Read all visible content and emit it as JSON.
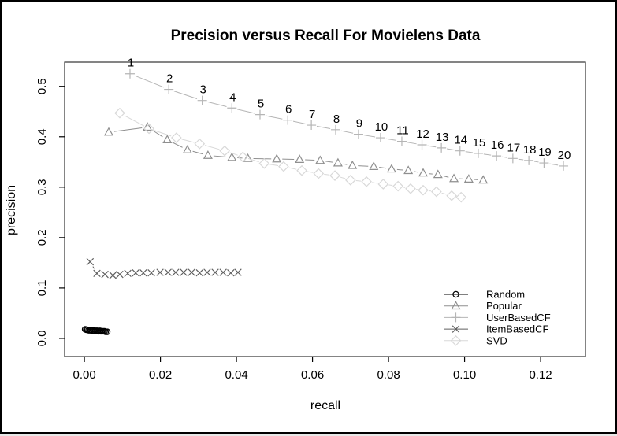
{
  "chart_data": {
    "type": "line",
    "title": "Precision versus Recall For Movielens Data",
    "xlabel": "recall",
    "ylabel": "precision",
    "grid": false,
    "legend_position": "bottom-right",
    "xlim": [
      -0.0052,
      0.1318
    ],
    "ylim": [
      -0.036,
      0.548
    ],
    "x_ticks": [
      {
        "value": 0.0,
        "label": "0.00"
      },
      {
        "value": 0.02,
        "label": "0.02"
      },
      {
        "value": 0.04,
        "label": "0.04"
      },
      {
        "value": 0.06,
        "label": "0.06"
      },
      {
        "value": 0.08,
        "label": "0.08"
      },
      {
        "value": 0.1,
        "label": "0.10"
      },
      {
        "value": 0.12,
        "label": "0.12"
      }
    ],
    "y_ticks": [
      {
        "value": 0.0,
        "label": "0.0"
      },
      {
        "value": 0.1,
        "label": "0.1"
      },
      {
        "value": 0.2,
        "label": "0.2"
      },
      {
        "value": 0.3,
        "label": "0.3"
      },
      {
        "value": 0.4,
        "label": "0.4"
      },
      {
        "value": 0.5,
        "label": "0.5"
      }
    ],
    "series": [
      {
        "name": "Random",
        "marker": "circle",
        "color": "#000000",
        "points": [
          [
            0.0002,
            0.018
          ],
          [
            0.0005,
            0.017
          ],
          [
            0.0008,
            0.017
          ],
          [
            0.0011,
            0.016
          ],
          [
            0.0014,
            0.016
          ],
          [
            0.0017,
            0.016
          ],
          [
            0.002,
            0.015
          ],
          [
            0.0023,
            0.016
          ],
          [
            0.0026,
            0.015
          ],
          [
            0.0029,
            0.015
          ],
          [
            0.0032,
            0.015
          ],
          [
            0.0035,
            0.015
          ],
          [
            0.0038,
            0.014
          ],
          [
            0.0041,
            0.015
          ],
          [
            0.0044,
            0.014
          ],
          [
            0.0047,
            0.014
          ],
          [
            0.005,
            0.014
          ],
          [
            0.0053,
            0.014
          ],
          [
            0.0056,
            0.013
          ],
          [
            0.006,
            0.013
          ]
        ]
      },
      {
        "name": "Popular",
        "marker": "triangle",
        "color": "#8f8f8f",
        "points": [
          [
            0.0064,
            0.409
          ],
          [
            0.0166,
            0.419
          ],
          [
            0.0218,
            0.394
          ],
          [
            0.0271,
            0.374
          ],
          [
            0.0325,
            0.363
          ],
          [
            0.0388,
            0.359
          ],
          [
            0.043,
            0.357
          ],
          [
            0.0506,
            0.356
          ],
          [
            0.0566,
            0.355
          ],
          [
            0.062,
            0.353
          ],
          [
            0.0667,
            0.348
          ],
          [
            0.0705,
            0.343
          ],
          [
            0.0761,
            0.341
          ],
          [
            0.0808,
            0.336
          ],
          [
            0.0852,
            0.333
          ],
          [
            0.0891,
            0.328
          ],
          [
            0.093,
            0.325
          ],
          [
            0.0972,
            0.317
          ],
          [
            0.1011,
            0.316
          ],
          [
            0.1049,
            0.314
          ]
        ]
      },
      {
        "name": "UserBasedCF",
        "marker": "plus",
        "color": "#b5b5b5",
        "point_labels": [
          "1",
          "2",
          "3",
          "4",
          "5",
          "6",
          "7",
          "8",
          "9",
          "10",
          "11",
          "12",
          "13",
          "14",
          "15",
          "16",
          "17",
          "18",
          "19",
          "20"
        ],
        "points": [
          [
            0.012,
            0.525
          ],
          [
            0.0222,
            0.494
          ],
          [
            0.031,
            0.472
          ],
          [
            0.0388,
            0.457
          ],
          [
            0.0462,
            0.444
          ],
          [
            0.0535,
            0.433
          ],
          [
            0.0597,
            0.423
          ],
          [
            0.0661,
            0.414
          ],
          [
            0.0721,
            0.405
          ],
          [
            0.0779,
            0.398
          ],
          [
            0.0835,
            0.391
          ],
          [
            0.0888,
            0.384
          ],
          [
            0.0939,
            0.378
          ],
          [
            0.0988,
            0.372
          ],
          [
            0.1036,
            0.367
          ],
          [
            0.1084,
            0.362
          ],
          [
            0.1127,
            0.357
          ],
          [
            0.1169,
            0.353
          ],
          [
            0.1209,
            0.348
          ],
          [
            0.126,
            0.342
          ]
        ]
      },
      {
        "name": "ItemBasedCF",
        "marker": "x",
        "color": "#5f5f5f",
        "points": [
          [
            0.0015,
            0.152
          ],
          [
            0.0033,
            0.129
          ],
          [
            0.0054,
            0.127
          ],
          [
            0.0075,
            0.125
          ],
          [
            0.0093,
            0.127
          ],
          [
            0.0114,
            0.129
          ],
          [
            0.0135,
            0.13
          ],
          [
            0.0155,
            0.13
          ],
          [
            0.0176,
            0.13
          ],
          [
            0.0199,
            0.131
          ],
          [
            0.022,
            0.131
          ],
          [
            0.024,
            0.131
          ],
          [
            0.0261,
            0.131
          ],
          [
            0.0282,
            0.131
          ],
          [
            0.0303,
            0.13
          ],
          [
            0.0323,
            0.131
          ],
          [
            0.0344,
            0.131
          ],
          [
            0.0365,
            0.131
          ],
          [
            0.0385,
            0.13
          ],
          [
            0.0404,
            0.131
          ]
        ]
      },
      {
        "name": "SVD",
        "marker": "diamond",
        "color": "#d8d8d8",
        "points": [
          [
            0.0093,
            0.447
          ],
          [
            0.017,
            0.416
          ],
          [
            0.0242,
            0.398
          ],
          [
            0.0303,
            0.386
          ],
          [
            0.0369,
            0.372
          ],
          [
            0.0417,
            0.36
          ],
          [
            0.0473,
            0.347
          ],
          [
            0.0524,
            0.341
          ],
          [
            0.0572,
            0.333
          ],
          [
            0.0616,
            0.327
          ],
          [
            0.0659,
            0.323
          ],
          [
            0.07,
            0.314
          ],
          [
            0.0742,
            0.311
          ],
          [
            0.0786,
            0.306
          ],
          [
            0.0825,
            0.302
          ],
          [
            0.0858,
            0.297
          ],
          [
            0.0891,
            0.294
          ],
          [
            0.0926,
            0.291
          ],
          [
            0.0966,
            0.283
          ],
          [
            0.0991,
            0.28
          ]
        ]
      }
    ]
  }
}
